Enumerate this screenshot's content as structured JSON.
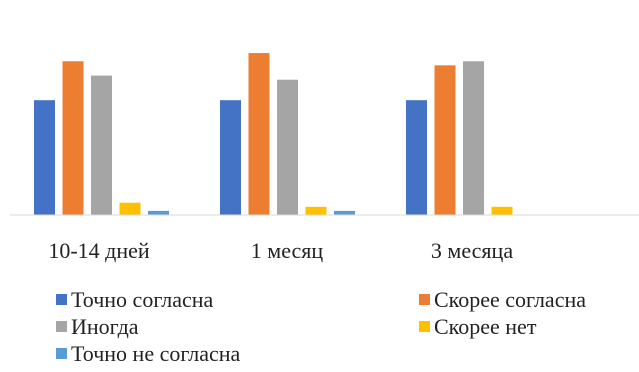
{
  "chart_data": {
    "type": "bar",
    "title": "",
    "xlabel": "",
    "ylabel": "",
    "ylim": [
      0,
      100
    ],
    "grid": false,
    "legend_position": "bottom",
    "categories": [
      "10-14 дней",
      "1 месяц",
      "3 месяца"
    ],
    "series": [
      {
        "name": "Точно согласна",
        "color": "#4472C4",
        "values": [
          56,
          56,
          56
        ]
      },
      {
        "name": "Скорее согласна",
        "color": "#ED7D31",
        "values": [
          75,
          79,
          73
        ]
      },
      {
        "name": "Иногда",
        "color": "#A5A5A5",
        "values": [
          68,
          66,
          75
        ]
      },
      {
        "name": "Скорее нет",
        "color": "#FFC000",
        "values": [
          6,
          4,
          4
        ]
      },
      {
        "name": "Точно не согласна",
        "color": "#5B9BD5",
        "values": [
          2,
          2,
          0
        ]
      }
    ]
  }
}
